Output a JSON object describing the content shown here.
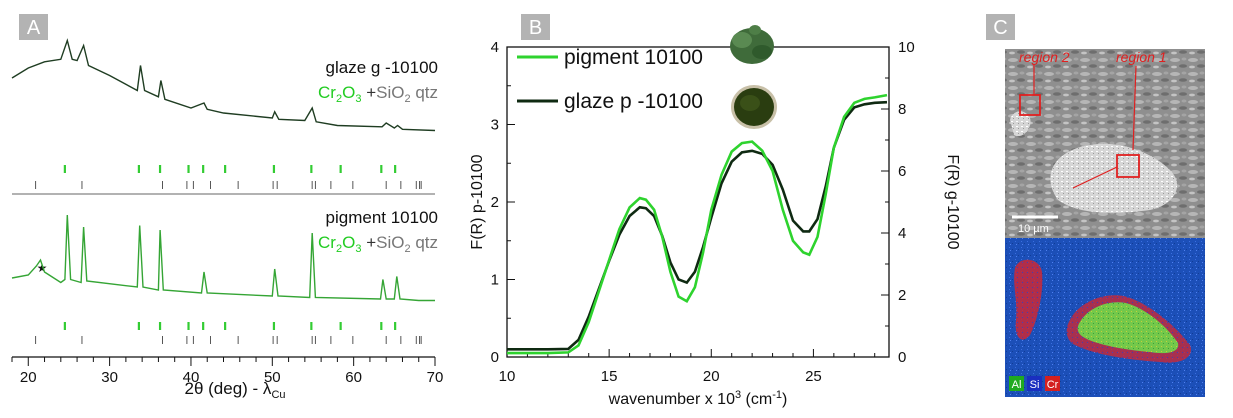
{
  "panel_a": {
    "letter": "A",
    "xlabel": "2θ (deg) - λ",
    "xlabel_sub": "Cu",
    "xticks": [
      "20",
      "30",
      "40",
      "50",
      "60",
      "70"
    ],
    "glaze_label": "glaze g -10100",
    "pigment_label": "pigment 10100",
    "phase_cr": "Cr",
    "phase_cr_sub1": "2",
    "phase_cr_o": "O",
    "phase_cr_sub2": "3",
    "phase_plus": " +",
    "phase_si": "SiO",
    "phase_si_sub": "2",
    "phase_qtz": " qtz",
    "star": "★",
    "colors": {
      "glaze": "#1f3d22",
      "pigment": "#35a535",
      "cr2o3_ticks": "#33cc33",
      "qtz_ticks": "#555555"
    },
    "icon": "star-icon"
  },
  "panel_b": {
    "letter": "B",
    "legend_pigment": "pigment 10100",
    "legend_glaze": "glaze p -10100",
    "xlabel": "wavenumber x 10",
    "xlabel_sup": "3",
    "xlabel_tail": " (cm",
    "xlabel_sup2": "-1",
    "xlabel_end": ")",
    "ylabel_left": "F(R) p-10100",
    "ylabel_right": "F(R) g-10100",
    "xticks": [
      "10",
      "15",
      "20",
      "25"
    ],
    "yticks_left": [
      "0",
      "1",
      "2",
      "3",
      "4"
    ],
    "yticks_right": [
      "0",
      "2",
      "4",
      "6",
      "8",
      "10"
    ]
  },
  "panel_c": {
    "letter": "C",
    "region1": "region 1",
    "region2": "region 2",
    "scale": "10 µm",
    "leg_al": "Al",
    "leg_si": "Si",
    "leg_cr": "Cr"
  },
  "chart_data": [
    {
      "type": "line",
      "title": "",
      "xlabel": "2θ (deg) - λCu",
      "ylabel": "",
      "xlim": [
        18,
        70
      ],
      "series": [
        {
          "name": "glaze g -10100",
          "x": [
            18,
            20,
            22,
            24,
            24.8,
            25.4,
            26,
            26.8,
            27.4,
            30,
            33.4,
            33.8,
            34.3,
            36,
            36.3,
            36.8,
            40,
            41.6,
            42,
            44,
            50,
            50.3,
            50.8,
            54,
            54.9,
            55.4,
            58,
            63.5,
            64,
            65,
            65.4,
            66,
            70
          ],
          "y": [
            0.8,
            0.88,
            0.93,
            0.95,
            1.1,
            0.95,
            0.94,
            1.06,
            0.9,
            0.82,
            0.7,
            0.9,
            0.7,
            0.65,
            0.78,
            0.63,
            0.56,
            0.6,
            0.55,
            0.52,
            0.48,
            0.53,
            0.47,
            0.46,
            0.56,
            0.45,
            0.42,
            0.41,
            0.44,
            0.4,
            0.42,
            0.39,
            0.38
          ]
        },
        {
          "name": "pigment 10100",
          "x": [
            18,
            20,
            21,
            21.5,
            22,
            24,
            24.5,
            24.8,
            25.2,
            26.5,
            26.8,
            27.2,
            33.4,
            33.7,
            34.1,
            36,
            36.2,
            36.6,
            41.3,
            41.6,
            42,
            50,
            50.3,
            50.7,
            54.6,
            54.9,
            55.3,
            63.3,
            63.6,
            64,
            65,
            65.3,
            65.7,
            68,
            70
          ],
          "y": [
            0.28,
            0.3,
            0.36,
            0.4,
            0.32,
            0.25,
            0.27,
            0.7,
            0.27,
            0.25,
            0.62,
            0.26,
            0.22,
            0.63,
            0.22,
            0.2,
            0.6,
            0.2,
            0.18,
            0.32,
            0.18,
            0.16,
            0.34,
            0.16,
            0.15,
            0.58,
            0.15,
            0.14,
            0.27,
            0.14,
            0.14,
            0.29,
            0.14,
            0.13,
            0.13
          ]
        }
      ],
      "tick_marks": {
        "cr2o3": [
          24.5,
          33.6,
          36.2,
          39.7,
          41.5,
          44.2,
          50.2,
          54.8,
          58.4,
          63.4,
          65.1
        ],
        "sio2_qtz": [
          20.9,
          26.6,
          36.5,
          39.5,
          40.3,
          42.4,
          45.8,
          50.1,
          50.6,
          54.9,
          55.3,
          57.2,
          59.9,
          64.0,
          65.8,
          67.7,
          68.1,
          68.3
        ]
      },
      "annotations": [
        "★ at 21.5"
      ]
    },
    {
      "type": "line",
      "title": "",
      "xlabel": "wavenumber x 10^3 (cm^-1)",
      "ylabel": "F(R) p-10100",
      "ylabel_right": "F(R) g-10100",
      "xlim": [
        10,
        28.7
      ],
      "ylim": [
        0,
        4
      ],
      "ylim_right": [
        0,
        10
      ],
      "series": [
        {
          "name": "pigment 10100",
          "axis": "left",
          "x": [
            10,
            12,
            13,
            13.5,
            14,
            14.5,
            15,
            15.5,
            16,
            16.5,
            16.8,
            17.2,
            17.6,
            18,
            18.4,
            18.8,
            19.2,
            19.6,
            20,
            20.5,
            21,
            21.5,
            22,
            22.5,
            23,
            23.5,
            24,
            24.5,
            24.8,
            25.2,
            25.6,
            26,
            26.5,
            27,
            27.5,
            28,
            28.6
          ],
          "y": [
            0.05,
            0.05,
            0.06,
            0.15,
            0.45,
            0.85,
            1.25,
            1.65,
            1.93,
            2.05,
            2.03,
            1.9,
            1.55,
            1.1,
            0.78,
            0.72,
            0.9,
            1.35,
            1.9,
            2.35,
            2.65,
            2.76,
            2.78,
            2.66,
            2.4,
            1.9,
            1.5,
            1.35,
            1.32,
            1.55,
            2.1,
            2.7,
            3.1,
            3.28,
            3.33,
            3.35,
            3.38
          ]
        },
        {
          "name": "glaze p -10100",
          "axis": "right",
          "x": [
            10,
            12,
            13,
            13.5,
            14,
            14.5,
            15,
            15.5,
            16,
            16.5,
            16.8,
            17.2,
            17.6,
            18,
            18.4,
            18.8,
            19.2,
            19.6,
            20,
            20.5,
            21,
            21.5,
            22,
            22.5,
            23,
            23.5,
            24,
            24.5,
            24.8,
            25.2,
            25.6,
            26,
            26.5,
            27,
            27.5,
            28,
            28.6
          ],
          "y": [
            0.25,
            0.25,
            0.26,
            0.55,
            1.3,
            2.2,
            3.1,
            3.95,
            4.55,
            4.83,
            4.8,
            4.55,
            3.9,
            3.05,
            2.5,
            2.4,
            2.75,
            3.55,
            4.5,
            5.6,
            6.3,
            6.6,
            6.65,
            6.55,
            6.2,
            5.4,
            4.4,
            4.05,
            4.05,
            4.45,
            5.5,
            6.75,
            7.65,
            8.05,
            8.15,
            8.2,
            8.22
          ]
        }
      ]
    }
  ]
}
